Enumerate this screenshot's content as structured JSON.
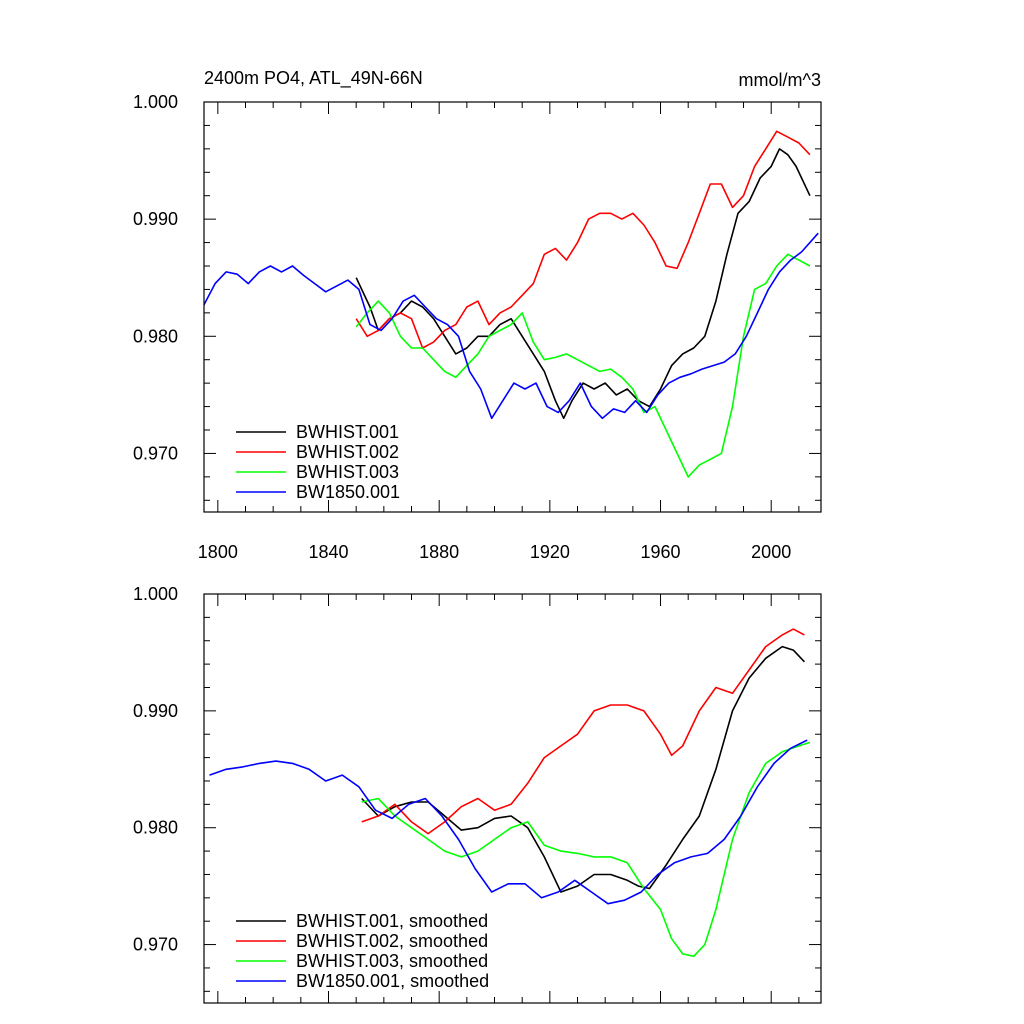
{
  "chart_data": [
    {
      "type": "line",
      "title": "2400m PO4, ATL_49N-66N",
      "units": "mmol/m^3",
      "xlim": [
        1795,
        2018
      ],
      "ylim": [
        0.965,
        1.0
      ],
      "xticks": [
        1800,
        1840,
        1880,
        1920,
        1960,
        2000
      ],
      "xtick_labels": [
        "1800",
        "1840",
        "1880",
        "1920",
        "1960",
        "2000"
      ],
      "yticks": [
        0.97,
        0.98,
        0.99,
        1.0
      ],
      "ytick_labels": [
        "0.970",
        "0.980",
        "0.990",
        "1.000"
      ],
      "legend_position": "bottom-left",
      "series": [
        {
          "name": "BWHIST.001",
          "color": "#000000",
          "x": [
            1850,
            1855,
            1858,
            1862,
            1866,
            1870,
            1874,
            1878,
            1882,
            1886,
            1890,
            1894,
            1898,
            1902,
            1906,
            1910,
            1914,
            1918,
            1922,
            1925,
            1928,
            1932,
            1936,
            1940,
            1944,
            1948,
            1952,
            1956,
            1960,
            1964,
            1968,
            1972,
            1976,
            1980,
            1984,
            1988,
            1992,
            1996,
            2000,
            2003,
            2006,
            2009,
            2014
          ],
          "y": [
            0.985,
            0.9825,
            0.9805,
            0.9815,
            0.982,
            0.983,
            0.9825,
            0.9815,
            0.98,
            0.9785,
            0.979,
            0.98,
            0.98,
            0.981,
            0.9815,
            0.98,
            0.9785,
            0.977,
            0.9745,
            0.973,
            0.9745,
            0.976,
            0.9755,
            0.976,
            0.975,
            0.9755,
            0.9745,
            0.974,
            0.9755,
            0.9775,
            0.9785,
            0.979,
            0.98,
            0.983,
            0.987,
            0.9905,
            0.9915,
            0.9935,
            0.9945,
            0.996,
            0.9955,
            0.9945,
            0.992
          ]
        },
        {
          "name": "BWHIST.002",
          "color": "#ff0000",
          "x": [
            1850,
            1854,
            1858,
            1862,
            1866,
            1870,
            1874,
            1878,
            1882,
            1886,
            1890,
            1894,
            1898,
            1902,
            1906,
            1910,
            1914,
            1918,
            1922,
            1926,
            1930,
            1934,
            1938,
            1942,
            1946,
            1950,
            1954,
            1958,
            1962,
            1966,
            1970,
            1974,
            1978,
            1982,
            1986,
            1990,
            1994,
            1998,
            2002,
            2006,
            2010,
            2014
          ],
          "y": [
            0.9815,
            0.98,
            0.9805,
            0.9815,
            0.982,
            0.9815,
            0.979,
            0.9795,
            0.9805,
            0.981,
            0.9825,
            0.983,
            0.981,
            0.982,
            0.9825,
            0.9835,
            0.9845,
            0.987,
            0.9875,
            0.9865,
            0.988,
            0.99,
            0.9905,
            0.9905,
            0.99,
            0.9905,
            0.9895,
            0.988,
            0.986,
            0.9858,
            0.988,
            0.9905,
            0.993,
            0.993,
            0.991,
            0.992,
            0.9945,
            0.996,
            0.9975,
            0.997,
            0.9965,
            0.9955
          ]
        },
        {
          "name": "BWHIST.003",
          "color": "#00ff00",
          "x": [
            1850,
            1854,
            1858,
            1862,
            1866,
            1870,
            1874,
            1878,
            1882,
            1886,
            1890,
            1894,
            1898,
            1902,
            1906,
            1910,
            1914,
            1918,
            1922,
            1926,
            1930,
            1934,
            1938,
            1942,
            1946,
            1950,
            1954,
            1958,
            1962,
            1966,
            1970,
            1974,
            1978,
            1982,
            1986,
            1990,
            1994,
            1998,
            2002,
            2006,
            2010,
            2014
          ],
          "y": [
            0.9808,
            0.982,
            0.983,
            0.982,
            0.98,
            0.979,
            0.979,
            0.978,
            0.977,
            0.9765,
            0.9775,
            0.9785,
            0.98,
            0.9805,
            0.981,
            0.982,
            0.9795,
            0.978,
            0.9782,
            0.9785,
            0.978,
            0.9775,
            0.977,
            0.9772,
            0.9765,
            0.9755,
            0.9735,
            0.974,
            0.972,
            0.97,
            0.968,
            0.969,
            0.9695,
            0.97,
            0.974,
            0.98,
            0.984,
            0.9845,
            0.986,
            0.987,
            0.9865,
            0.986
          ]
        },
        {
          "name": "BW1850.001",
          "color": "#0000ff",
          "x": [
            1795,
            1799,
            1803,
            1807,
            1811,
            1815,
            1819,
            1823,
            1827,
            1831,
            1835,
            1839,
            1843,
            1847,
            1851,
            1855,
            1859,
            1863,
            1867,
            1871,
            1875,
            1879,
            1883,
            1887,
            1891,
            1895,
            1899,
            1903,
            1907,
            1911,
            1915,
            1919,
            1923,
            1927,
            1931,
            1935,
            1939,
            1943,
            1947,
            1951,
            1955,
            1959,
            1963,
            1967,
            1971,
            1975,
            1979,
            1983,
            1987,
            1991,
            1995,
            1999,
            2003,
            2007,
            2011,
            2017
          ],
          "y": [
            0.9827,
            0.9845,
            0.9855,
            0.9853,
            0.9845,
            0.9855,
            0.986,
            0.9855,
            0.986,
            0.9852,
            0.9845,
            0.9838,
            0.9843,
            0.9848,
            0.984,
            0.981,
            0.9805,
            0.9815,
            0.983,
            0.9835,
            0.9825,
            0.9815,
            0.981,
            0.98,
            0.977,
            0.9755,
            0.973,
            0.9745,
            0.976,
            0.9755,
            0.976,
            0.974,
            0.9735,
            0.9745,
            0.976,
            0.974,
            0.973,
            0.9738,
            0.9735,
            0.9745,
            0.9735,
            0.975,
            0.976,
            0.9765,
            0.9768,
            0.9772,
            0.9775,
            0.9778,
            0.9785,
            0.98,
            0.982,
            0.984,
            0.9855,
            0.9865,
            0.9872,
            0.9888
          ]
        }
      ]
    },
    {
      "type": "line",
      "title": "",
      "xlim": [
        1795,
        2018
      ],
      "ylim": [
        0.965,
        1.0
      ],
      "xticks": [
        1800,
        1840,
        1880,
        1920,
        1960,
        2000
      ],
      "yticks": [
        0.97,
        0.98,
        0.99,
        1.0
      ],
      "ytick_labels": [
        "0.970",
        "0.980",
        "0.990",
        "1.000"
      ],
      "legend_position": "bottom-left",
      "series": [
        {
          "name": "BWHIST.001, smoothed",
          "color": "#000000",
          "x": [
            1852,
            1858,
            1864,
            1870,
            1876,
            1882,
            1888,
            1894,
            1900,
            1906,
            1912,
            1918,
            1924,
            1930,
            1936,
            1942,
            1948,
            1952,
            1956,
            1962,
            1968,
            1974,
            1980,
            1986,
            1992,
            1998,
            2004,
            2008,
            2012
          ],
          "y": [
            0.9825,
            0.981,
            0.9818,
            0.9822,
            0.9822,
            0.981,
            0.9798,
            0.98,
            0.9808,
            0.981,
            0.98,
            0.9775,
            0.9745,
            0.975,
            0.976,
            0.976,
            0.9755,
            0.975,
            0.9748,
            0.9768,
            0.979,
            0.981,
            0.985,
            0.99,
            0.9928,
            0.9945,
            0.9955,
            0.9952,
            0.9942
          ]
        },
        {
          "name": "BWHIST.002, smoothed",
          "color": "#ff0000",
          "x": [
            1852,
            1858,
            1864,
            1870,
            1876,
            1882,
            1888,
            1894,
            1900,
            1906,
            1912,
            1918,
            1924,
            1930,
            1936,
            1942,
            1948,
            1954,
            1960,
            1964,
            1968,
            1974,
            1980,
            1986,
            1992,
            1998,
            2004,
            2008,
            2012
          ],
          "y": [
            0.9805,
            0.981,
            0.982,
            0.9805,
            0.9795,
            0.9805,
            0.9818,
            0.9825,
            0.9815,
            0.982,
            0.9838,
            0.986,
            0.987,
            0.988,
            0.99,
            0.9905,
            0.9905,
            0.99,
            0.988,
            0.9862,
            0.987,
            0.99,
            0.992,
            0.9915,
            0.9935,
            0.9955,
            0.9965,
            0.997,
            0.9965
          ]
        },
        {
          "name": "BWHIST.003, smoothed",
          "color": "#00ff00",
          "x": [
            1852,
            1858,
            1864,
            1870,
            1876,
            1882,
            1888,
            1894,
            1900,
            1906,
            1912,
            1918,
            1924,
            1930,
            1936,
            1942,
            1948,
            1954,
            1960,
            1964,
            1968,
            1972,
            1976,
            1980,
            1986,
            1992,
            1998,
            2004,
            2010,
            2014
          ],
          "y": [
            0.9822,
            0.9825,
            0.981,
            0.98,
            0.979,
            0.978,
            0.9775,
            0.978,
            0.979,
            0.98,
            0.9805,
            0.9785,
            0.978,
            0.9778,
            0.9775,
            0.9775,
            0.977,
            0.9748,
            0.973,
            0.9705,
            0.9692,
            0.969,
            0.97,
            0.973,
            0.979,
            0.983,
            0.9855,
            0.9865,
            0.987,
            0.9873
          ]
        },
        {
          "name": "BW1850.001, smoothed",
          "color": "#0000ff",
          "x": [
            1797,
            1803,
            1809,
            1815,
            1821,
            1827,
            1833,
            1839,
            1845,
            1851,
            1857,
            1863,
            1869,
            1875,
            1881,
            1887,
            1893,
            1899,
            1905,
            1911,
            1917,
            1923,
            1929,
            1935,
            1941,
            1947,
            1953,
            1959,
            1965,
            1971,
            1977,
            1983,
            1989,
            1995,
            2001,
            2007,
            2013
          ],
          "y": [
            0.9845,
            0.985,
            0.9852,
            0.9855,
            0.9857,
            0.9855,
            0.985,
            0.984,
            0.9845,
            0.9835,
            0.9815,
            0.9808,
            0.982,
            0.9825,
            0.981,
            0.979,
            0.9765,
            0.9745,
            0.9752,
            0.9752,
            0.974,
            0.9745,
            0.9755,
            0.9745,
            0.9735,
            0.9738,
            0.9745,
            0.976,
            0.977,
            0.9775,
            0.9778,
            0.979,
            0.981,
            0.9835,
            0.9855,
            0.9868,
            0.9875
          ]
        }
      ]
    }
  ]
}
